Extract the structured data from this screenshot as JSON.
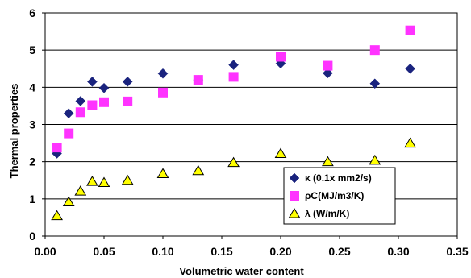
{
  "chart_data": {
    "type": "scatter",
    "xlabel": "Volumetric water content",
    "ylabel": "Thermal properties",
    "xlim": [
      0,
      0.35
    ],
    "ylim": [
      0,
      6
    ],
    "x_ticks": [
      "0.00",
      "0.05",
      "0.10",
      "0.15",
      "0.20",
      "0.25",
      "0.30",
      "0.35"
    ],
    "y_ticks": [
      "0",
      "1",
      "2",
      "3",
      "4",
      "5",
      "6"
    ],
    "grid": "horizontal",
    "legend_position": "bottom-right",
    "series": [
      {
        "name": "κ (0.1x mm2/s)",
        "marker": "diamond",
        "color": "#1a237e",
        "points": [
          [
            0.01,
            2.22
          ],
          [
            0.02,
            3.3
          ],
          [
            0.03,
            3.63
          ],
          [
            0.04,
            4.15
          ],
          [
            0.05,
            3.98
          ],
          [
            0.07,
            4.15
          ],
          [
            0.1,
            4.37
          ],
          [
            0.13,
            4.2
          ],
          [
            0.16,
            4.6
          ],
          [
            0.2,
            4.64
          ],
          [
            0.24,
            4.38
          ],
          [
            0.28,
            4.1
          ],
          [
            0.31,
            4.5
          ]
        ]
      },
      {
        "name": "ρC(MJ/m3/K)",
        "marker": "square",
        "color": "#ff33ff",
        "points": [
          [
            0.01,
            2.38
          ],
          [
            0.02,
            2.76
          ],
          [
            0.03,
            3.33
          ],
          [
            0.04,
            3.52
          ],
          [
            0.05,
            3.6
          ],
          [
            0.07,
            3.62
          ],
          [
            0.1,
            3.86
          ],
          [
            0.13,
            4.2
          ],
          [
            0.16,
            4.28
          ],
          [
            0.2,
            4.82
          ],
          [
            0.24,
            4.58
          ],
          [
            0.28,
            5.0
          ],
          [
            0.31,
            5.53
          ]
        ]
      },
      {
        "name": "λ (W/m/K)",
        "marker": "triangle",
        "color": "#ffff00",
        "points": [
          [
            0.01,
            0.55
          ],
          [
            0.02,
            0.92
          ],
          [
            0.03,
            1.21
          ],
          [
            0.04,
            1.47
          ],
          [
            0.05,
            1.44
          ],
          [
            0.07,
            1.5
          ],
          [
            0.1,
            1.68
          ],
          [
            0.13,
            1.76
          ],
          [
            0.16,
            1.98
          ],
          [
            0.2,
            2.22
          ],
          [
            0.24,
            2.0
          ],
          [
            0.28,
            2.04
          ],
          [
            0.31,
            2.5
          ]
        ]
      }
    ]
  }
}
